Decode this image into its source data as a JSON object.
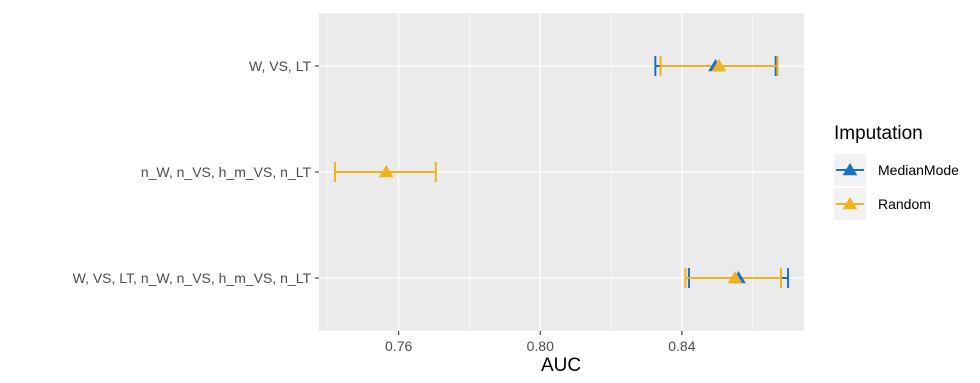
{
  "chart_data": {
    "type": "errorbar",
    "title": "",
    "xlabel": "AUC",
    "ylabel": "",
    "xlim": [
      0.7375,
      0.8745
    ],
    "xticks": [
      0.76,
      0.8,
      0.84
    ],
    "xtick_labels": [
      "0.76",
      "0.80",
      "0.84"
    ],
    "grid": true,
    "categories": [
      "W, VS, LT",
      "n_W, n_VS, h_m_VS, n_LT",
      "W, VS, LT, n_W, n_VS, h_m_VS, n_LT"
    ],
    "legend": {
      "title": "Imputation",
      "position": "right"
    },
    "series": [
      {
        "name": "MedianMode",
        "color": "#1F6FC4",
        "marker": "triangle",
        "points": [
          {
            "category": "W, VS, LT",
            "auc": 0.8495,
            "lower": 0.8325,
            "upper": 0.8665
          },
          {
            "category": "W, VS, LT, n_W, n_VS, h_m_VS, n_LT",
            "auc": 0.856,
            "lower": 0.842,
            "upper": 0.87
          }
        ]
      },
      {
        "name": "Random",
        "color": "#EFB321",
        "marker": "triangle",
        "points": [
          {
            "category": "W, VS, LT",
            "auc": 0.8505,
            "lower": 0.834,
            "upper": 0.867
          },
          {
            "category": "n_W, n_VS, h_m_VS, n_LT",
            "auc": 0.7565,
            "lower": 0.742,
            "upper": 0.7705
          },
          {
            "category": "W, VS, LT, n_W, n_VS, h_m_VS, n_LT",
            "auc": 0.855,
            "lower": 0.841,
            "upper": 0.868
          }
        ]
      }
    ]
  }
}
